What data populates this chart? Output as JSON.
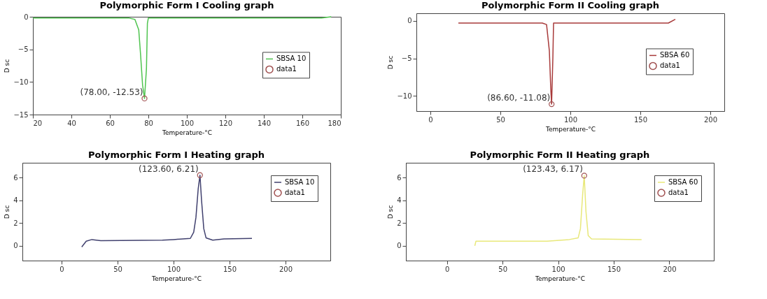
{
  "chart_data": [
    {
      "type": "line",
      "title": "Polymorphic Form I Cooling graph",
      "xlabel": "Temperature-°C",
      "ylabel": "D sc",
      "xlim": [
        20,
        180
      ],
      "ylim": [
        -15,
        0
      ],
      "xticks": [
        20,
        40,
        60,
        80,
        100,
        120,
        140,
        160,
        180
      ],
      "yticks": [
        -15,
        -10,
        -5,
        0
      ],
      "grid": false,
      "legend": "right",
      "line_style": "solid",
      "series": [
        {
          "name": "SBSA 10",
          "color": "#4fc44f",
          "x": [
            20,
            70,
            73,
            75,
            76,
            77,
            78,
            79,
            79.5,
            80,
            170,
            175
          ],
          "values": [
            -0.2,
            -0.2,
            -0.4,
            -2,
            -6,
            -10.5,
            -12.53,
            -8,
            -1,
            -0.2,
            -0.2,
            0
          ]
        },
        {
          "name": "data1",
          "type": "scatter",
          "marker": "circle",
          "color": "#a05050",
          "x": [
            78.0
          ],
          "values": [
            -12.53
          ]
        }
      ],
      "annotations": [
        {
          "text": "(78.00, -12.53)",
          "x": 78.0,
          "y": -12.53
        }
      ]
    },
    {
      "type": "line",
      "title": "Polymorphic Form II Cooling graph",
      "xlabel": "Temperature-°C",
      "ylabel": "D sc",
      "xlim": [
        -10,
        210
      ],
      "ylim": [
        -12,
        1
      ],
      "xticks": [
        0,
        50,
        100,
        150,
        200
      ],
      "yticks": [
        -10,
        -5,
        0
      ],
      "grid": false,
      "legend": "right",
      "line_style": "solid",
      "series": [
        {
          "name": "SBSA 60",
          "color": "#a83a3a",
          "x": [
            20,
            80,
            83,
            85,
            86,
            86.6,
            87.5,
            88,
            170,
            175
          ],
          "values": [
            -0.3,
            -0.3,
            -0.5,
            -4,
            -9,
            -11.08,
            -5,
            -0.3,
            -0.3,
            0.2
          ]
        },
        {
          "name": "data1",
          "type": "scatter",
          "marker": "circle",
          "color": "#a05050",
          "x": [
            86.6
          ],
          "values": [
            -11.08
          ]
        }
      ],
      "annotations": [
        {
          "text": "(86.60, -11.08)",
          "x": 86.6,
          "y": -11.08
        }
      ]
    },
    {
      "type": "line",
      "title": "Polymorphic Form I Heating graph",
      "xlabel": "Temperature-°C",
      "ylabel": "D sc",
      "xlim": [
        -35,
        240
      ],
      "ylim": [
        -1.3,
        7.3
      ],
      "xticks": [
        0,
        50,
        100,
        150,
        200
      ],
      "yticks": [
        0,
        2,
        4,
        6
      ],
      "grid": false,
      "legend": "top right",
      "line_style": "solid",
      "series": [
        {
          "name": "SBSA 10",
          "color": "#40406e",
          "x": [
            18,
            22,
            27,
            35,
            90,
            100,
            115,
            118,
            120,
            122,
            123.6,
            125,
            127,
            129,
            135,
            145,
            170
          ],
          "values": [
            -0.1,
            0.4,
            0.55,
            0.45,
            0.5,
            0.55,
            0.65,
            1.2,
            2.5,
            5,
            6.21,
            4,
            1.5,
            0.7,
            0.5,
            0.6,
            0.65
          ]
        },
        {
          "name": "data1",
          "type": "scatter",
          "marker": "circle",
          "color": "#a05050",
          "x": [
            123.6
          ],
          "values": [
            6.21
          ]
        }
      ],
      "annotations": [
        {
          "text": "(123.60, 6.21)",
          "x": 123.6,
          "y": 6.21
        }
      ]
    },
    {
      "type": "line",
      "title": "Polymorphic Form II Heating graph",
      "xlabel": "Temperature-°C",
      "ylabel": "D sc",
      "xlim": [
        -37,
        240
      ],
      "ylim": [
        -1.3,
        7.3
      ],
      "xticks": [
        0,
        50,
        100,
        150,
        200
      ],
      "yticks": [
        0,
        2,
        4,
        6
      ],
      "grid": false,
      "legend": "top right",
      "line_style": "solid",
      "series": [
        {
          "name": "SBSA 60",
          "color": "#e8e87a",
          "x": [
            25,
            26,
            90,
            110,
            118,
            120,
            122,
            123.43,
            125,
            127,
            130,
            175
          ],
          "values": [
            0,
            0.4,
            0.4,
            0.55,
            0.7,
            1.5,
            4.5,
            6.17,
            3,
            0.9,
            0.6,
            0.55
          ]
        },
        {
          "name": "data1",
          "type": "scatter",
          "marker": "circle",
          "color": "#a05050",
          "x": [
            123.43
          ],
          "values": [
            6.17
          ]
        }
      ],
      "annotations": [
        {
          "text": "(123.43, 6.17)",
          "x": 123.43,
          "y": 6.17
        }
      ]
    }
  ]
}
